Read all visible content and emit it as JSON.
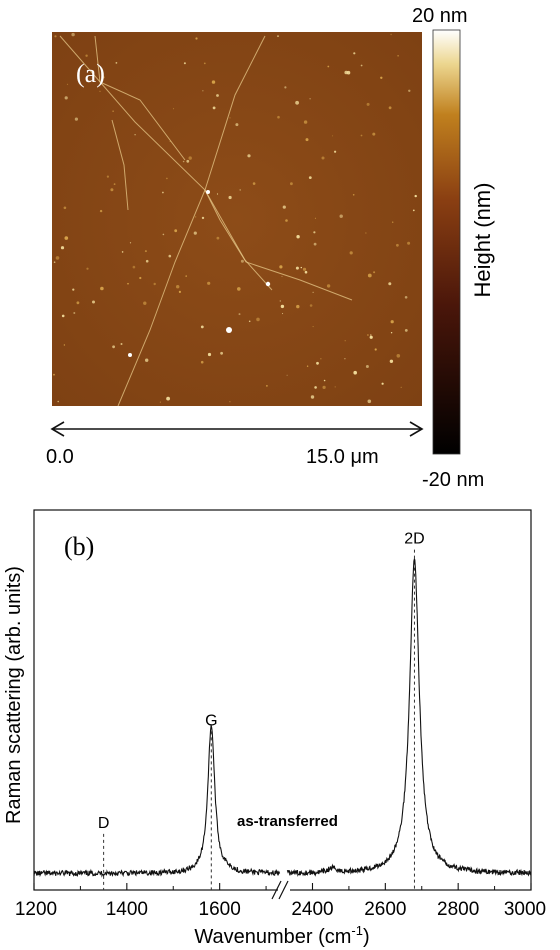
{
  "panel_a": {
    "label": "(a)",
    "colorbar_top": "20 nm",
    "colorbar_bottom": "-20 nm",
    "colorbar_label": "Height (nm)",
    "scale_start": "0.0",
    "scale_end": "15.0 μm",
    "colors": {
      "dark": "#000000",
      "mid": "#8a3f12",
      "surface": "#8c4a17",
      "light": "#f5eab8",
      "white": "#ffffff"
    }
  },
  "chart_data": {
    "type": "line",
    "title": "(b)",
    "xlabel_base": "Wavenumber (cm",
    "xlabel_sup": "-1",
    "xlabel_end": ")",
    "ylabel": "Raman scattering (arb. units)",
    "annotation": "as-transferred",
    "x_ticks": [
      "1200",
      "1400",
      "1600",
      "2400",
      "2600",
      "2800",
      "3000"
    ],
    "x_segments": [
      [
        1200,
        1730
      ],
      [
        2330,
        3000
      ]
    ],
    "axis_break": "//",
    "grid": false,
    "peaks": [
      {
        "label": "D",
        "x": 1350,
        "height": 0.0
      },
      {
        "label": "G",
        "x": 1582,
        "height": 0.45
      },
      {
        "label": "2D",
        "x": 2680,
        "height": 1.0
      }
    ],
    "baseline": 0.05,
    "ylim": [
      0,
      1.15
    ]
  }
}
